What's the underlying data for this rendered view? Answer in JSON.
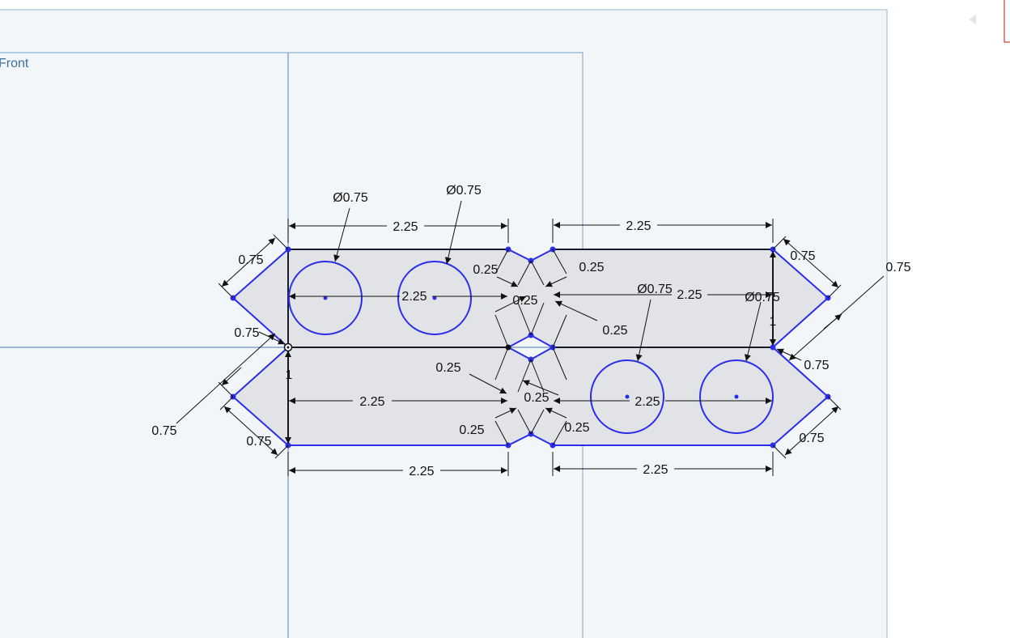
{
  "viewport": {
    "plane_label": "Front",
    "colors": {
      "sketch_edge": "#2a2ee8",
      "plane_fill": "#f3f6f9",
      "plane_border": "#a8c4da",
      "region_fill": "#e1e3e7",
      "dimension": "#111111",
      "plane_label": "#3a6ea5"
    },
    "icons": [
      "collapse-arrow-icon",
      "view-cube-icon"
    ]
  },
  "dimensions": {
    "top_left_length": "2.25",
    "top_right_length": "2.25",
    "bottom_left_length": "2.25",
    "bottom_right_length": "2.25",
    "upper_inner_left_length": "2.25",
    "upper_inner_right_length": "2.25",
    "lower_inner_left_length": "2.25",
    "lower_inner_right_length": "2.25",
    "hole1_diameter": "Ø0.75",
    "hole2_diameter": "Ø0.75",
    "hole3_diameter": "Ø0.75",
    "hole4_diameter": "Ø0.75",
    "left_top_chamfer": "0.75",
    "left_mid_chamfer": "0.75",
    "left_outer_chamfer": "0.75",
    "left_bottom_chamfer": "0.75",
    "right_top_chamfer": "0.75",
    "right_outer_chamfer": "0.75",
    "right_mid_chamfer": "0.75",
    "right_bottom_chamfer": "0.75",
    "notch_top_left": "0.25",
    "notch_top_right": "0.25",
    "notch_upper_center": "0.25",
    "notch_upper_right": "0.25",
    "notch_lower_left": "0.25",
    "notch_lower_center": "0.25",
    "notch_bottom_left": "0.25",
    "notch_bottom_right": "0.25",
    "height_left": "1",
    "height_right": "1"
  }
}
